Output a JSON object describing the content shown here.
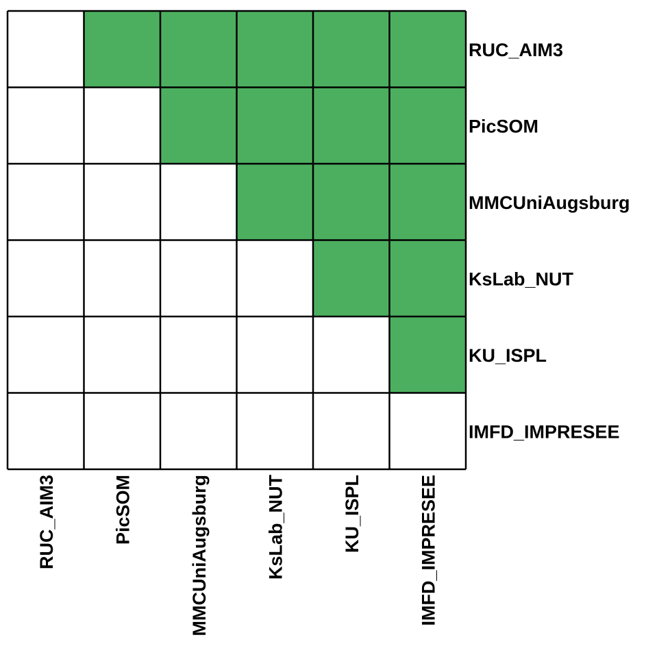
{
  "chart_data": {
    "type": "heatmap",
    "row_labels": [
      "RUC_AIM3",
      "PicSOM",
      "MMCUniAugsburg",
      "KsLab_NUT",
      "KU_ISPL",
      "IMFD_IMPRESEE"
    ],
    "col_labels": [
      "RUC_AIM3",
      "PicSOM",
      "MMCUniAugsburg",
      "KsLab_NUT",
      "KU_ISPL",
      "IMFD_IMPRESEE"
    ],
    "values": [
      [
        0,
        1,
        1,
        1,
        1,
        1
      ],
      [
        0,
        0,
        1,
        1,
        1,
        1
      ],
      [
        0,
        0,
        0,
        1,
        1,
        1
      ],
      [
        0,
        0,
        0,
        0,
        1,
        1
      ],
      [
        0,
        0,
        0,
        0,
        0,
        1
      ],
      [
        0,
        0,
        0,
        0,
        0,
        0
      ]
    ],
    "colors": {
      "filled": "#4CAF5F",
      "empty": "#FFFFFF",
      "grid": "#000000"
    },
    "row_label_position": "right",
    "col_label_position": "bottom-rotated"
  }
}
